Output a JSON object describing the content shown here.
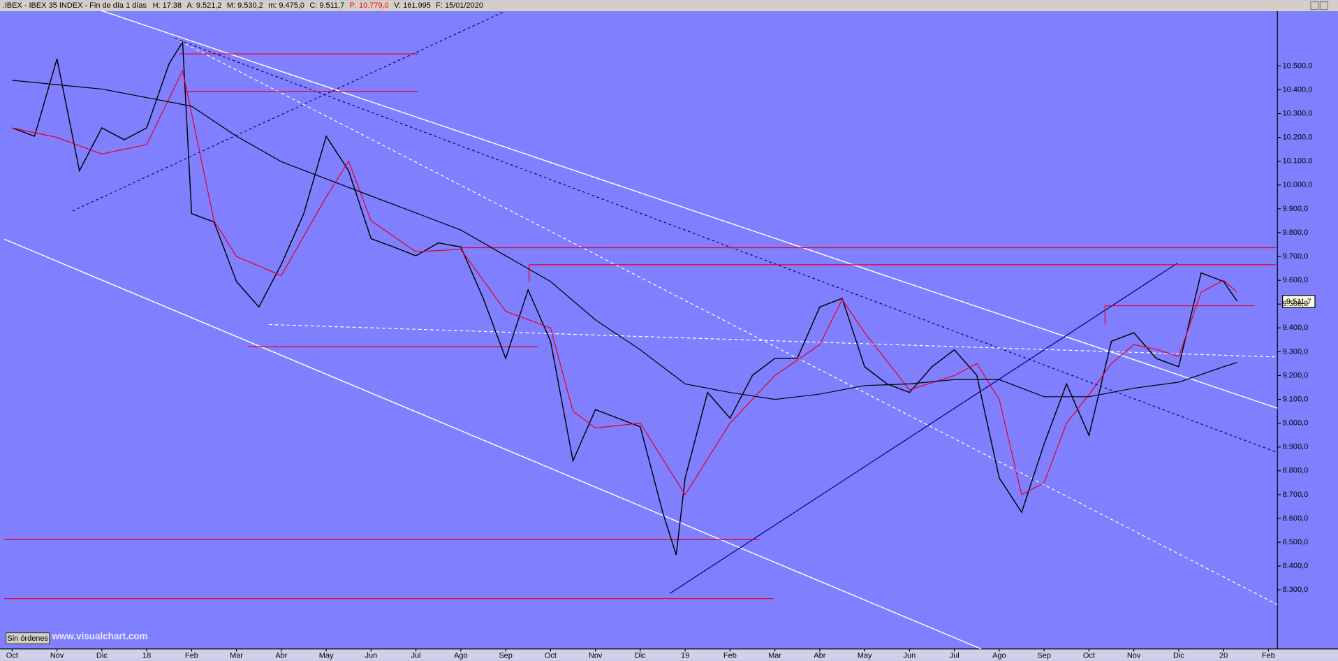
{
  "header": {
    "symbol": ".IBEX - IBEX 35 INDEX - Fin de día 1 días",
    "fields": [
      {
        "text": "H: 17:38",
        "color": "#000000"
      },
      {
        "text": "A: 9.521,2",
        "color": "#000000"
      },
      {
        "text": "M: 9.530,2",
        "color": "#000000"
      },
      {
        "text": "m: 9.475,0",
        "color": "#000000"
      },
      {
        "text": "C: 9.511,7",
        "color": "#000000"
      },
      {
        "text": "P: 10.779,0",
        "color": "#ff0000"
      },
      {
        "text": "V: 161.995",
        "color": "#000000"
      },
      {
        "text": "F: 15/01/2020",
        "color": "#000000"
      }
    ]
  },
  "footer": {
    "button": "Sin órdenes",
    "watermark": "www.visualchart.com"
  },
  "chart_data": {
    "type": "line",
    "background": "#8080ff",
    "last_price_label": "9.511,7",
    "xlim": [
      -0.27,
      28.2
    ],
    "ylim": [
      8052,
      10730
    ],
    "xticks": [
      {
        "value": 0,
        "label": "Oct"
      },
      {
        "value": 1,
        "label": "Nov"
      },
      {
        "value": 2,
        "label": "Dic"
      },
      {
        "value": 3,
        "label": "18"
      },
      {
        "value": 4,
        "label": "Feb"
      },
      {
        "value": 5,
        "label": "Mar"
      },
      {
        "value": 6,
        "label": "Abr"
      },
      {
        "value": 7,
        "label": "May"
      },
      {
        "value": 8,
        "label": "Jun"
      },
      {
        "value": 9,
        "label": "Jul"
      },
      {
        "value": 10,
        "label": "Ago"
      },
      {
        "value": 11,
        "label": "Sep"
      },
      {
        "value": 12,
        "label": "Oct"
      },
      {
        "value": 13,
        "label": "Nov"
      },
      {
        "value": 14,
        "label": "Dic"
      },
      {
        "value": 15,
        "label": "19"
      },
      {
        "value": 16,
        "label": "Feb"
      },
      {
        "value": 17,
        "label": "Mar"
      },
      {
        "value": 18,
        "label": "Abr"
      },
      {
        "value": 19,
        "label": "May"
      },
      {
        "value": 20,
        "label": "Jun"
      },
      {
        "value": 21,
        "label": "Jul"
      },
      {
        "value": 22,
        "label": "Ago"
      },
      {
        "value": 23,
        "label": "Sep"
      },
      {
        "value": 24,
        "label": "Oct"
      },
      {
        "value": 25,
        "label": "Nov"
      },
      {
        "value": 26,
        "label": "Dic"
      },
      {
        "value": 27,
        "label": "20"
      },
      {
        "value": 28,
        "label": "Feb"
      }
    ],
    "yticks": [
      {
        "value": 8300,
        "label": "8.300,0"
      },
      {
        "value": 8400,
        "label": "8.400,0"
      },
      {
        "value": 8500,
        "label": "8.500,0"
      },
      {
        "value": 8600,
        "label": "8.600,0"
      },
      {
        "value": 8700,
        "label": "8.700,0"
      },
      {
        "value": 8800,
        "label": "8.800,0"
      },
      {
        "value": 8900,
        "label": "8.900,0"
      },
      {
        "value": 9000,
        "label": "9.000,0"
      },
      {
        "value": 9100,
        "label": "9.100,0"
      },
      {
        "value": 9200,
        "label": "9.200,0"
      },
      {
        "value": 9300,
        "label": "9.300,0"
      },
      {
        "value": 9400,
        "label": "9.400,0"
      },
      {
        "value": 9500,
        "label": "9.500,0"
      },
      {
        "value": 9600,
        "label": "9.600,0"
      },
      {
        "value": 9700,
        "label": "9.700,0"
      },
      {
        "value": 9800,
        "label": "9.800,0"
      },
      {
        "value": 9900,
        "label": "9.900,0"
      },
      {
        "value": 10000,
        "label": "10.000,0"
      },
      {
        "value": 10100,
        "label": "10.100,0"
      },
      {
        "value": 10200,
        "label": "10.200,0"
      },
      {
        "value": 10300,
        "label": "10.300,0"
      },
      {
        "value": 10400,
        "label": "10.400,0"
      },
      {
        "value": 10500,
        "label": "10.500,0"
      }
    ],
    "series": [
      {
        "color": "#000000",
        "width": 1.2,
        "x": [
          0,
          0.5,
          1,
          1.5,
          2,
          2.5,
          3,
          3.5,
          3.8,
          4,
          4.5,
          5,
          5.5,
          6,
          6.5,
          7,
          7.5,
          8,
          8.5,
          9,
          9.5,
          10,
          10.5,
          11,
          11.5,
          12,
          12.5,
          13,
          13.5,
          14,
          14.5,
          14.8,
          15,
          15.5,
          16,
          16.5,
          17,
          17.5,
          18,
          18.5,
          19,
          19.5,
          20,
          20.5,
          21,
          21.5,
          22,
          22.5,
          23,
          23.5,
          24,
          24.5,
          25,
          25.5,
          26,
          26.5,
          27,
          27.3
        ],
        "values": [
          10240,
          10205,
          10530,
          10060,
          10240,
          10190,
          10240,
          10510,
          10600,
          9880,
          9845,
          9595,
          9488,
          9667,
          9880,
          10205,
          10060,
          9775,
          9740,
          9703,
          9757,
          9740,
          9524,
          9272,
          9560,
          9344,
          8842,
          9057,
          9021,
          8985,
          8626,
          8447,
          8770,
          9129,
          9021,
          9201,
          9272,
          9272,
          9488,
          9524,
          9237,
          9165,
          9129,
          9237,
          9308,
          9201,
          8770,
          8626,
          8913,
          9165,
          8949,
          9344,
          9380,
          9272,
          9237,
          9631,
          9595,
          9513
        ]
      },
      {
        "color": "#e0002a",
        "width": 1,
        "x": [
          0,
          1,
          2,
          3,
          3.8,
          4.5,
          5,
          6,
          7,
          7.5,
          8,
          9,
          10,
          11,
          12,
          12.5,
          13,
          14,
          15,
          15.5,
          16,
          17,
          18,
          18.5,
          19,
          20,
          21,
          21.5,
          22,
          22.5,
          23,
          23.5,
          24,
          24.5,
          25,
          25.5,
          26,
          26.5,
          27,
          27.3
        ],
        "values": [
          10240,
          10200,
          10130,
          10170,
          10480,
          9850,
          9700,
          9620,
          9950,
          10100,
          9850,
          9720,
          9730,
          9470,
          9400,
          9050,
          8980,
          9000,
          8700,
          8850,
          9000,
          9200,
          9330,
          9520,
          9380,
          9140,
          9200,
          9250,
          9100,
          8700,
          8750,
          9000,
          9120,
          9250,
          9330,
          9310,
          9280,
          9550,
          9600,
          9550
        ]
      },
      {
        "color": "#000000",
        "width": 1,
        "x": [
          0,
          2,
          4,
          5,
          6,
          7,
          8,
          9,
          10,
          11,
          12,
          13,
          14,
          15,
          16,
          17,
          18,
          19,
          20,
          21,
          22,
          23,
          24,
          25,
          26,
          27,
          27.3
        ],
        "values": [
          10440,
          10403,
          10331,
          10205,
          10098,
          10026,
          9954,
          9883,
          9811,
          9703,
          9595,
          9434,
          9308,
          9165,
          9129,
          9100,
          9122,
          9158,
          9165,
          9183,
          9183,
          9111,
          9111,
          9147,
          9172,
          9237,
          9255
        ]
      }
    ]
  }
}
